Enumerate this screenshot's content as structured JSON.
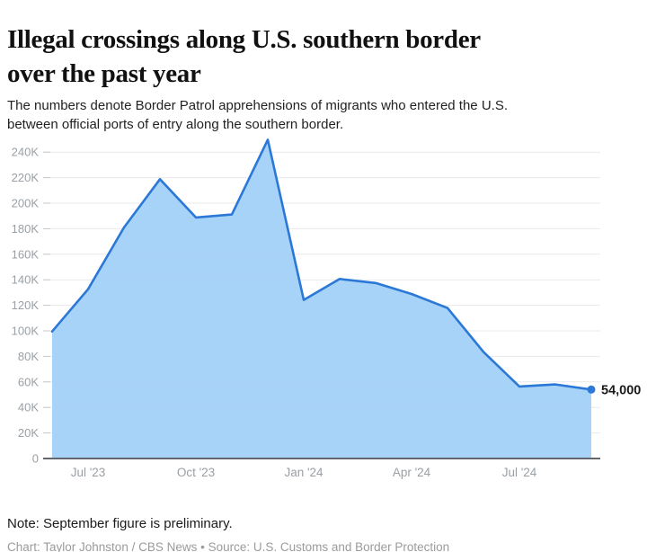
{
  "header": {
    "title_lines": [
      "Illegal crossings along U.S. southern border",
      "over the past year"
    ],
    "subtitle_lines": [
      "The numbers denote Border Patrol apprehensions of migrants who entered the U.S.",
      "between official ports of entry along the southern border."
    ]
  },
  "chart_data": {
    "type": "area",
    "series_name": "Border Patrol apprehensions",
    "x": [
      "Jun '23",
      "Jul '23",
      "Aug '23",
      "Sep '23",
      "Oct '23",
      "Nov '23",
      "Dec '23",
      "Jan '24",
      "Feb '24",
      "Mar '24",
      "Apr '24",
      "May '24",
      "Jun '24",
      "Jul '24",
      "Aug '24",
      "Sep '24"
    ],
    "values": [
      99500,
      132600,
      181000,
      218800,
      188800,
      191100,
      249700,
      124200,
      140600,
      137500,
      128900,
      117900,
      83500,
      56400,
      58000,
      54000
    ],
    "x_ticks": [
      {
        "index": 1,
        "label": "Jul '23"
      },
      {
        "index": 4,
        "label": "Oct '23"
      },
      {
        "index": 7,
        "label": "Jan '24"
      },
      {
        "index": 10,
        "label": "Apr '24"
      },
      {
        "index": 13,
        "label": "Jul '24"
      }
    ],
    "y_ticks": [
      {
        "value": 0,
        "label": "0"
      },
      {
        "value": 20000,
        "label": "20K"
      },
      {
        "value": 40000,
        "label": "40K"
      },
      {
        "value": 60000,
        "label": "60K"
      },
      {
        "value": 80000,
        "label": "80K"
      },
      {
        "value": 100000,
        "label": "100K"
      },
      {
        "value": 120000,
        "label": "120K"
      },
      {
        "value": 140000,
        "label": "140K"
      },
      {
        "value": 160000,
        "label": "160K"
      },
      {
        "value": 180000,
        "label": "180K"
      },
      {
        "value": 200000,
        "label": "200K"
      },
      {
        "value": 220000,
        "label": "220K"
      },
      {
        "value": 240000,
        "label": "240K"
      }
    ],
    "ylim": [
      0,
      258000
    ],
    "grid": "horizontal",
    "legend": "none",
    "end_label": "54,000",
    "end_value": 54000,
    "colors": {
      "line": "#2b78d7",
      "fill": "#9fcef7",
      "marker": "#2b78d7",
      "gridline": "#e9e9e9",
      "tick_dash": "#c9c9c9",
      "baseline": "#63666d",
      "axis_text": "#9aa0a5",
      "end_label_text": "#1b1b1d"
    }
  },
  "footer": {
    "note": "Note: September figure is preliminary.",
    "credit": "Chart: Taylor Johnston / CBS News • Source: U.S. Customs and Border Protection"
  }
}
